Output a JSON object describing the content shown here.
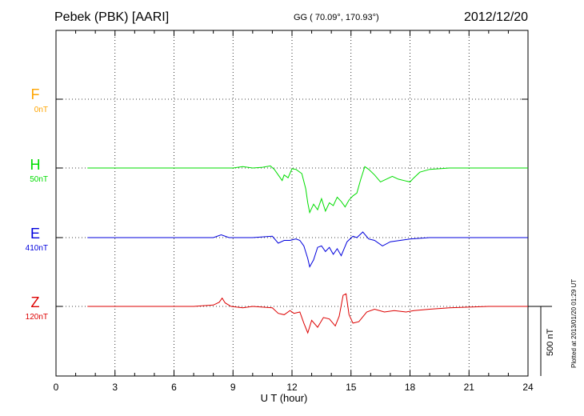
{
  "header": {
    "station": "Pebek (PBK)  [AARI]",
    "coords": "GG ( 70.09°, 170.93°)",
    "date": "2012/12/20"
  },
  "plotted_note": "Plotted at 2013/01/20 01:29 UT",
  "scale_bar_label": "500 nT",
  "colors": {
    "F": "#ffa500",
    "H": "#00dd00",
    "E": "#0000dd",
    "Z": "#dd0000"
  },
  "chart_data": {
    "type": "line",
    "xlabel": "U T (hour)",
    "xlim": [
      0,
      24
    ],
    "xticks": [
      0,
      3,
      6,
      9,
      12,
      15,
      18,
      21,
      24
    ],
    "grid": true,
    "series": [
      {
        "name": "F",
        "baseline_label": "0nT",
        "points": []
      },
      {
        "name": "H",
        "baseline_label": "50nT",
        "points": [
          [
            1.6,
            0
          ],
          [
            3,
            0
          ],
          [
            4,
            0
          ],
          [
            5,
            0
          ],
          [
            6,
            0
          ],
          [
            7,
            0
          ],
          [
            8,
            0
          ],
          [
            9,
            0
          ],
          [
            9.5,
            10
          ],
          [
            10,
            0
          ],
          [
            10.5,
            5
          ],
          [
            10.9,
            15
          ],
          [
            11.1,
            -10
          ],
          [
            11.3,
            -50
          ],
          [
            11.5,
            -90
          ],
          [
            11.6,
            -50
          ],
          [
            11.8,
            -70
          ],
          [
            12,
            -5
          ],
          [
            12.2,
            -10
          ],
          [
            12.5,
            -40
          ],
          [
            12.7,
            -150
          ],
          [
            12.8,
            -250
          ],
          [
            12.9,
            -320
          ],
          [
            13.1,
            -260
          ],
          [
            13.3,
            -300
          ],
          [
            13.5,
            -220
          ],
          [
            13.7,
            -310
          ],
          [
            13.9,
            -250
          ],
          [
            14.1,
            -270
          ],
          [
            14.3,
            -210
          ],
          [
            14.5,
            -240
          ],
          [
            14.7,
            -280
          ],
          [
            14.9,
            -230
          ],
          [
            15.1,
            -200
          ],
          [
            15.3,
            -180
          ],
          [
            15.5,
            -80
          ],
          [
            15.7,
            10
          ],
          [
            15.9,
            -10
          ],
          [
            16.2,
            -50
          ],
          [
            16.5,
            -100
          ],
          [
            16.8,
            -80
          ],
          [
            17.1,
            -60
          ],
          [
            17.4,
            -80
          ],
          [
            17.7,
            -90
          ],
          [
            18,
            -100
          ],
          [
            18.2,
            -70
          ],
          [
            18.5,
            -30
          ],
          [
            19,
            -10
          ],
          [
            20,
            0
          ],
          [
            21,
            0
          ],
          [
            22,
            0
          ],
          [
            23,
            0
          ],
          [
            24,
            0
          ]
        ]
      },
      {
        "name": "E",
        "baseline_label": "410nT",
        "points": [
          [
            1.6,
            0
          ],
          [
            3,
            0
          ],
          [
            4,
            0
          ],
          [
            5,
            0
          ],
          [
            6,
            0
          ],
          [
            7,
            0
          ],
          [
            8,
            0
          ],
          [
            8.4,
            20
          ],
          [
            8.8,
            0
          ],
          [
            9,
            0
          ],
          [
            10,
            0
          ],
          [
            11,
            10
          ],
          [
            11.3,
            -40
          ],
          [
            11.6,
            -20
          ],
          [
            11.9,
            -20
          ],
          [
            12.2,
            -10
          ],
          [
            12.4,
            -20
          ],
          [
            12.6,
            -60
          ],
          [
            12.8,
            -150
          ],
          [
            12.9,
            -210
          ],
          [
            13.1,
            -160
          ],
          [
            13.3,
            -70
          ],
          [
            13.5,
            -60
          ],
          [
            13.7,
            -100
          ],
          [
            13.9,
            -70
          ],
          [
            14.1,
            -120
          ],
          [
            14.3,
            -80
          ],
          [
            14.5,
            -130
          ],
          [
            14.8,
            -30
          ],
          [
            15.1,
            10
          ],
          [
            15.3,
            0
          ],
          [
            15.6,
            40
          ],
          [
            15.9,
            -10
          ],
          [
            16.2,
            -20
          ],
          [
            16.6,
            -60
          ],
          [
            17.0,
            -30
          ],
          [
            17.5,
            -20
          ],
          [
            18,
            -10
          ],
          [
            19,
            0
          ],
          [
            20,
            0
          ],
          [
            21,
            0
          ],
          [
            22,
            0
          ],
          [
            23,
            0
          ],
          [
            24,
            0
          ]
        ]
      },
      {
        "name": "Z",
        "baseline_label": "120nT",
        "points": [
          [
            1.6,
            0
          ],
          [
            3,
            0
          ],
          [
            4,
            0
          ],
          [
            5,
            0
          ],
          [
            6,
            0
          ],
          [
            7,
            0
          ],
          [
            7.5,
            5
          ],
          [
            8,
            10
          ],
          [
            8.3,
            30
          ],
          [
            8.45,
            60
          ],
          [
            8.6,
            25
          ],
          [
            8.9,
            0
          ],
          [
            9.5,
            -10
          ],
          [
            10,
            0
          ],
          [
            10.5,
            -5
          ],
          [
            11,
            -10
          ],
          [
            11.3,
            -50
          ],
          [
            11.6,
            -60
          ],
          [
            11.9,
            -30
          ],
          [
            12.1,
            -50
          ],
          [
            12.4,
            -40
          ],
          [
            12.6,
            -120
          ],
          [
            12.8,
            -190
          ],
          [
            13,
            -100
          ],
          [
            13.3,
            -150
          ],
          [
            13.6,
            -80
          ],
          [
            13.9,
            -90
          ],
          [
            14.2,
            -140
          ],
          [
            14.4,
            -70
          ],
          [
            14.6,
            80
          ],
          [
            14.75,
            90
          ],
          [
            14.9,
            -60
          ],
          [
            15.1,
            -120
          ],
          [
            15.4,
            -110
          ],
          [
            15.8,
            -40
          ],
          [
            16.2,
            -20
          ],
          [
            16.7,
            -40
          ],
          [
            17.2,
            -30
          ],
          [
            17.8,
            -40
          ],
          [
            18.2,
            -30
          ],
          [
            19,
            -20
          ],
          [
            20,
            -10
          ],
          [
            21,
            -5
          ],
          [
            22,
            0
          ],
          [
            23,
            0
          ],
          [
            24,
            0
          ]
        ]
      }
    ]
  }
}
